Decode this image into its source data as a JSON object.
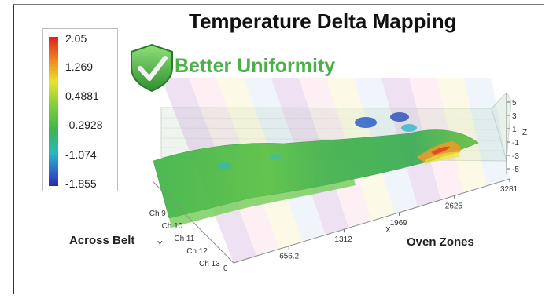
{
  "chart_data": {
    "type": "surface-3d",
    "title": "Temperature Delta Mapping",
    "colorbar": {
      "labels": [
        "2.05",
        "1.269",
        "0.4881",
        "-0.2928",
        "-1.074",
        "-1.855"
      ],
      "range": [
        -1.855,
        2.05
      ]
    },
    "badge": "Better Uniformity",
    "x_axis": {
      "label": "X",
      "ticks": [
        "656.2",
        "1312",
        "1969",
        "2625",
        "3281"
      ]
    },
    "y_axis": {
      "label": "Y",
      "ticks": [
        "Ch 9",
        "Ch 10",
        "Ch 11",
        "Ch 12",
        "Ch 13"
      ],
      "extra_tick": "0"
    },
    "z_axis": {
      "label": "Z",
      "ticks": [
        "5",
        "3",
        "1",
        "-1",
        "-3",
        "-5"
      ],
      "range": [
        -5,
        5
      ]
    },
    "annotations": {
      "across_belt": "Across Belt",
      "oven_zones": "Oven Zones"
    },
    "band_colors": [
      "#c9a2d6",
      "#f2a9c0",
      "#f6efb0",
      "#a9c9e8"
    ]
  }
}
